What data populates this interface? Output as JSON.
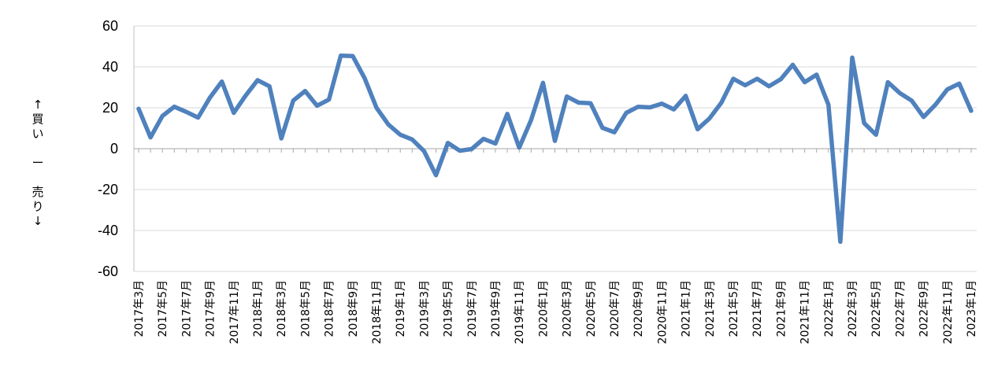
{
  "chart_data": {
    "type": "line",
    "title": "",
    "xlabel": "",
    "ylabel": "↑買い ー 売り↓",
    "ylim": [
      -60,
      60
    ],
    "yticks": [
      60,
      40,
      20,
      0,
      -20,
      -40,
      -60
    ],
    "grid": true,
    "legend": "none",
    "line_color": "#4f81bd",
    "tick_labels": [
      "2017年3月",
      "2017年5月",
      "2017年7月",
      "2017年9月",
      "2017年11月",
      "2018年1月",
      "2018年3月",
      "2018年5月",
      "2018年7月",
      "2018年9月",
      "2018年11月",
      "2019年1月",
      "2019年3月",
      "2019年5月",
      "2019年7月",
      "2019年9月",
      "2019年11月",
      "2020年1月",
      "2020年3月",
      "2020年5月",
      "2020年7月",
      "2020年9月",
      "2020年11月",
      "2021年1月",
      "2021年3月",
      "2021年5月",
      "2021年7月",
      "2021年9月",
      "2021年11月",
      "2022年1月",
      "2022年3月",
      "2022年5月",
      "2022年7月",
      "2022年9月",
      "2022年11月",
      "2023年1月"
    ],
    "x": [
      "2017-03",
      "2017-04",
      "2017-05",
      "2017-06",
      "2017-07",
      "2017-08",
      "2017-09",
      "2017-10",
      "2017-11",
      "2017-12",
      "2018-01",
      "2018-02",
      "2018-03",
      "2018-04",
      "2018-05",
      "2018-06",
      "2018-07",
      "2018-08",
      "2018-09",
      "2018-10",
      "2018-11",
      "2018-12",
      "2019-01",
      "2019-02",
      "2019-03",
      "2019-04",
      "2019-05",
      "2019-06",
      "2019-07",
      "2019-08",
      "2019-09",
      "2019-10",
      "2019-11",
      "2019-12",
      "2020-01",
      "2020-02",
      "2020-03",
      "2020-04",
      "2020-05",
      "2020-06",
      "2020-07",
      "2020-08",
      "2020-09",
      "2020-10",
      "2020-11",
      "2020-12",
      "2021-01",
      "2021-02",
      "2021-03",
      "2021-04",
      "2021-05",
      "2021-06",
      "2021-07",
      "2021-08",
      "2021-09",
      "2021-10",
      "2021-11",
      "2021-12",
      "2022-01",
      "2022-02",
      "2022-03",
      "2022-04",
      "2022-05",
      "2022-06",
      "2022-07",
      "2022-08",
      "2022-09",
      "2022-10",
      "2022-11",
      "2022-12",
      "2023-01"
    ],
    "values": [
      19.5,
      5.5,
      16,
      20.5,
      18,
      15.2,
      25,
      32.8,
      17.5,
      26,
      33.5,
      30.5,
      5,
      23.5,
      28.2,
      21,
      24,
      45.5,
      45.3,
      34.5,
      20,
      11.8,
      6.8,
      4.5,
      -1.2,
      -13,
      2.8,
      -1,
      -0.2,
      4.8,
      2.5,
      17,
      0.5,
      14,
      32.2,
      3.8,
      25.5,
      22.5,
      22.2,
      10.2,
      8,
      17.5,
      20.5,
      20.2,
      22,
      19.2,
      25.8,
      9.5,
      14.8,
      22.5,
      34.2,
      31,
      34.2,
      30.5,
      34,
      41,
      32.5,
      36.2,
      21.5,
      -45.5,
      44.5,
      12.5,
      6.8,
      32.5,
      27.2,
      23.5,
      15.5,
      21.5,
      29,
      31.8,
      18.5
    ]
  }
}
